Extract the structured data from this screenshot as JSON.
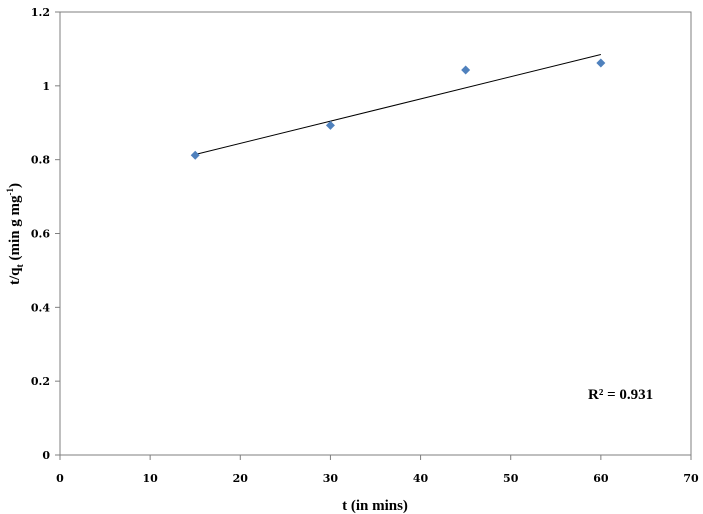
{
  "chart_data": {
    "type": "scatter",
    "xlabel": "t (in mins)",
    "ylabel_main": "t/q",
    "ylabel_sub": "t",
    "ylabel_rest": " (min g mg",
    "ylabel_sup": "-1",
    "ylabel_close": ")",
    "xlim": [
      0,
      70
    ],
    "ylim": [
      0,
      1.2
    ],
    "x_ticks": [
      0,
      10,
      20,
      30,
      40,
      50,
      60,
      70
    ],
    "y_ticks": [
      0,
      0.2,
      0.4,
      0.6,
      0.8,
      1,
      1.2
    ],
    "grid": false,
    "legend": "none",
    "series": [
      {
        "marker": "diamond",
        "color": "#4F81BD",
        "x": [
          15,
          30,
          45,
          60
        ],
        "y": [
          0.812,
          0.893,
          1.043,
          1.062
        ]
      }
    ],
    "trendline": {
      "type": "linear",
      "color": "#000000",
      "x": [
        15,
        60
      ],
      "y": [
        0.814,
        1.085
      ]
    },
    "annotation": "R² = 0.931"
  }
}
